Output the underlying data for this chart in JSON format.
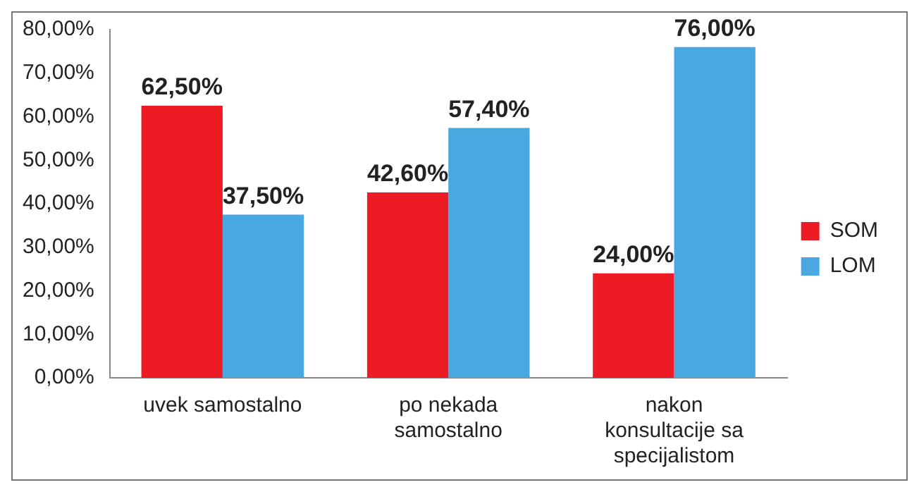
{
  "chart_data": {
    "type": "bar",
    "categories": [
      "uvek samostalno",
      "po nekada samostalno",
      "nakon konsultacije sa specijalistom"
    ],
    "series": [
      {
        "name": "SOM",
        "color": "#ed1c24",
        "values": [
          62.5,
          42.6,
          24.0
        ],
        "value_labels": [
          "62,50%",
          "42,60%",
          "24,00%"
        ]
      },
      {
        "name": "LOM",
        "color": "#4aa8e0",
        "values": [
          37.5,
          57.4,
          76.0
        ],
        "value_labels": [
          "37,50%",
          "57,40%",
          "76,00%"
        ]
      }
    ],
    "ylim": [
      0,
      80
    ],
    "yticks": [
      {
        "value": 0,
        "label": "0,00%"
      },
      {
        "value": 10,
        "label": "10,00%"
      },
      {
        "value": 20,
        "label": "20,00%"
      },
      {
        "value": 30,
        "label": "30,00%"
      },
      {
        "value": 40,
        "label": "40,00%"
      },
      {
        "value": 50,
        "label": "50,00%"
      },
      {
        "value": 60,
        "label": "60,00%"
      },
      {
        "value": 70,
        "label": "70,00%"
      },
      {
        "value": 80,
        "label": "80,00%"
      }
    ],
    "grid": false,
    "legend": "right"
  }
}
